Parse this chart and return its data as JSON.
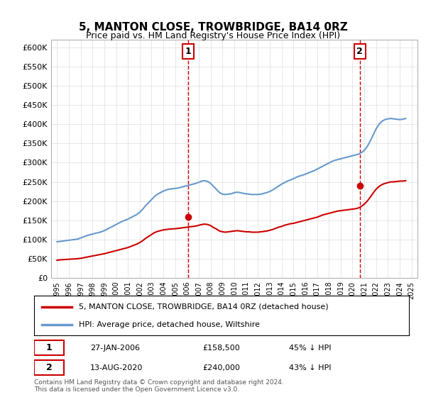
{
  "title": "5, MANTON CLOSE, TROWBRIDGE, BA14 0RZ",
  "subtitle": "Price paid vs. HM Land Registry's House Price Index (HPI)",
  "legend_line1": "5, MANTON CLOSE, TROWBRIDGE, BA14 0RZ (detached house)",
  "legend_line2": "HPI: Average price, detached house, Wiltshire",
  "annotation1_date": "27-JAN-2006",
  "annotation1_price": "£158,500",
  "annotation1_hpi": "45% ↓ HPI",
  "annotation2_date": "13-AUG-2020",
  "annotation2_price": "£240,000",
  "annotation2_hpi": "43% ↓ HPI",
  "footer": "Contains HM Land Registry data © Crown copyright and database right 2024.\nThis data is licensed under the Open Government Licence v3.0.",
  "red_color": "#cc0000",
  "blue_color": "#6699cc",
  "marker1_x": 2006.08,
  "marker1_y": 158500,
  "marker2_x": 2020.62,
  "marker2_y": 240000,
  "xmin": 1994.5,
  "xmax": 2025.5,
  "ymin": 0,
  "ymax": 620000,
  "yticks": [
    0,
    50000,
    100000,
    150000,
    200000,
    250000,
    300000,
    350000,
    400000,
    450000,
    500000,
    550000,
    600000
  ],
  "ytick_labels": [
    "£0",
    "£50K",
    "£100K",
    "£150K",
    "£200K",
    "£250K",
    "£300K",
    "£350K",
    "£400K",
    "£450K",
    "£500K",
    "£550K",
    "£600K"
  ],
  "xticks": [
    1995,
    1996,
    1997,
    1998,
    1999,
    2000,
    2001,
    2002,
    2003,
    2004,
    2005,
    2006,
    2007,
    2008,
    2009,
    2010,
    2011,
    2012,
    2013,
    2014,
    2015,
    2016,
    2017,
    2018,
    2019,
    2020,
    2021,
    2022,
    2023,
    2024,
    2025
  ],
  "hpi_x": [
    1995,
    1995.25,
    1995.5,
    1995.75,
    1996,
    1996.25,
    1996.5,
    1996.75,
    1997,
    1997.25,
    1997.5,
    1997.75,
    1998,
    1998.25,
    1998.5,
    1998.75,
    1999,
    1999.25,
    1999.5,
    1999.75,
    2000,
    2000.25,
    2000.5,
    2000.75,
    2001,
    2001.25,
    2001.5,
    2001.75,
    2002,
    2002.25,
    2002.5,
    2002.75,
    2003,
    2003.25,
    2003.5,
    2003.75,
    2004,
    2004.25,
    2004.5,
    2004.75,
    2005,
    2005.25,
    2005.5,
    2005.75,
    2006,
    2006.25,
    2006.5,
    2006.75,
    2007,
    2007.25,
    2007.5,
    2007.75,
    2008,
    2008.25,
    2008.5,
    2008.75,
    2009,
    2009.25,
    2009.5,
    2009.75,
    2010,
    2010.25,
    2010.5,
    2010.75,
    2011,
    2011.25,
    2011.5,
    2011.75,
    2012,
    2012.25,
    2012.5,
    2012.75,
    2013,
    2013.25,
    2013.5,
    2013.75,
    2014,
    2014.25,
    2014.5,
    2014.75,
    2015,
    2015.25,
    2015.5,
    2015.75,
    2016,
    2016.25,
    2016.5,
    2016.75,
    2017,
    2017.25,
    2017.5,
    2017.75,
    2018,
    2018.25,
    2018.5,
    2018.75,
    2019,
    2019.25,
    2019.5,
    2019.75,
    2020,
    2020.25,
    2020.5,
    2020.75,
    2021,
    2021.25,
    2021.5,
    2021.75,
    2022,
    2022.25,
    2022.5,
    2022.75,
    2023,
    2023.25,
    2023.5,
    2023.75,
    2024,
    2024.25,
    2024.5
  ],
  "hpi_y": [
    94000,
    95000,
    96000,
    97000,
    98000,
    99000,
    100000,
    101000,
    104000,
    107000,
    110000,
    112000,
    114000,
    116000,
    118000,
    120000,
    123000,
    127000,
    131000,
    135000,
    139000,
    143000,
    147000,
    150000,
    153000,
    157000,
    161000,
    165000,
    171000,
    179000,
    188000,
    196000,
    204000,
    212000,
    218000,
    222000,
    226000,
    229000,
    231000,
    232000,
    233000,
    234000,
    236000,
    238000,
    240000,
    242000,
    244000,
    246000,
    249000,
    252000,
    253000,
    251000,
    246000,
    238000,
    230000,
    222000,
    218000,
    217000,
    218000,
    219000,
    222000,
    223000,
    222000,
    220000,
    219000,
    218000,
    217000,
    217000,
    217000,
    218000,
    220000,
    222000,
    225000,
    229000,
    234000,
    239000,
    244000,
    248000,
    252000,
    255000,
    258000,
    262000,
    265000,
    267000,
    270000,
    273000,
    276000,
    279000,
    283000,
    287000,
    291000,
    295000,
    299000,
    303000,
    306000,
    308000,
    310000,
    312000,
    314000,
    316000,
    318000,
    320000,
    322000,
    326000,
    332000,
    342000,
    356000,
    372000,
    388000,
    400000,
    408000,
    412000,
    414000,
    415000,
    414000,
    413000,
    412000,
    413000,
    415000
  ],
  "red_x": [
    1995,
    1995.25,
    1995.5,
    1995.75,
    1996,
    1996.25,
    1996.5,
    1996.75,
    1997,
    1997.25,
    1997.5,
    1997.75,
    1998,
    1998.25,
    1998.5,
    1998.75,
    1999,
    1999.25,
    1999.5,
    1999.75,
    2000,
    2000.25,
    2000.5,
    2000.75,
    2001,
    2001.25,
    2001.5,
    2001.75,
    2002,
    2002.25,
    2002.5,
    2002.75,
    2003,
    2003.25,
    2003.5,
    2003.75,
    2004,
    2004.25,
    2004.5,
    2004.75,
    2005,
    2005.25,
    2005.5,
    2005.75,
    2006,
    2006.25,
    2006.5,
    2006.75,
    2007,
    2007.25,
    2007.5,
    2007.75,
    2008,
    2008.25,
    2008.5,
    2008.75,
    2009,
    2009.25,
    2009.5,
    2009.75,
    2010,
    2010.25,
    2010.5,
    2010.75,
    2011,
    2011.25,
    2011.5,
    2011.75,
    2012,
    2012.25,
    2012.5,
    2012.75,
    2013,
    2013.25,
    2013.5,
    2013.75,
    2014,
    2014.25,
    2014.5,
    2014.75,
    2015,
    2015.25,
    2015.5,
    2015.75,
    2016,
    2016.25,
    2016.5,
    2016.75,
    2017,
    2017.25,
    2017.5,
    2017.75,
    2018,
    2018.25,
    2018.5,
    2018.75,
    2019,
    2019.25,
    2019.5,
    2019.75,
    2020,
    2020.25,
    2020.5,
    2020.75,
    2021,
    2021.25,
    2021.5,
    2021.75,
    2022,
    2022.25,
    2022.5,
    2022.75,
    2023,
    2023.25,
    2023.5,
    2023.75,
    2024,
    2024.25,
    2024.5
  ],
  "red_y": [
    46000,
    47000,
    47500,
    48000,
    48500,
    49000,
    49500,
    50000,
    51000,
    52500,
    54000,
    55500,
    57000,
    58500,
    60000,
    61500,
    63000,
    65000,
    67000,
    69000,
    71000,
    73000,
    75000,
    77000,
    79000,
    82000,
    85000,
    88000,
    92000,
    97000,
    103000,
    108000,
    113000,
    118000,
    121000,
    123000,
    125000,
    126000,
    127000,
    127500,
    128000,
    129000,
    130000,
    131000,
    132000,
    133000,
    134000,
    135000,
    137000,
    139000,
    140000,
    139000,
    136000,
    131000,
    127000,
    122000,
    120000,
    119000,
    120000,
    121000,
    122000,
    123000,
    122000,
    121000,
    120000,
    120000,
    119000,
    119000,
    119000,
    120000,
    121000,
    122000,
    124000,
    126000,
    129000,
    132000,
    134000,
    137000,
    139000,
    141000,
    142000,
    144000,
    146000,
    148000,
    150000,
    152000,
    154000,
    156000,
    158000,
    161000,
    164000,
    166000,
    168000,
    170000,
    172000,
    174000,
    175000,
    176000,
    177000,
    178000,
    179000,
    180000,
    182000,
    186000,
    192000,
    200000,
    210000,
    221000,
    231000,
    238000,
    243000,
    246000,
    248000,
    250000,
    250000,
    251000,
    252000,
    252000,
    253000
  ]
}
